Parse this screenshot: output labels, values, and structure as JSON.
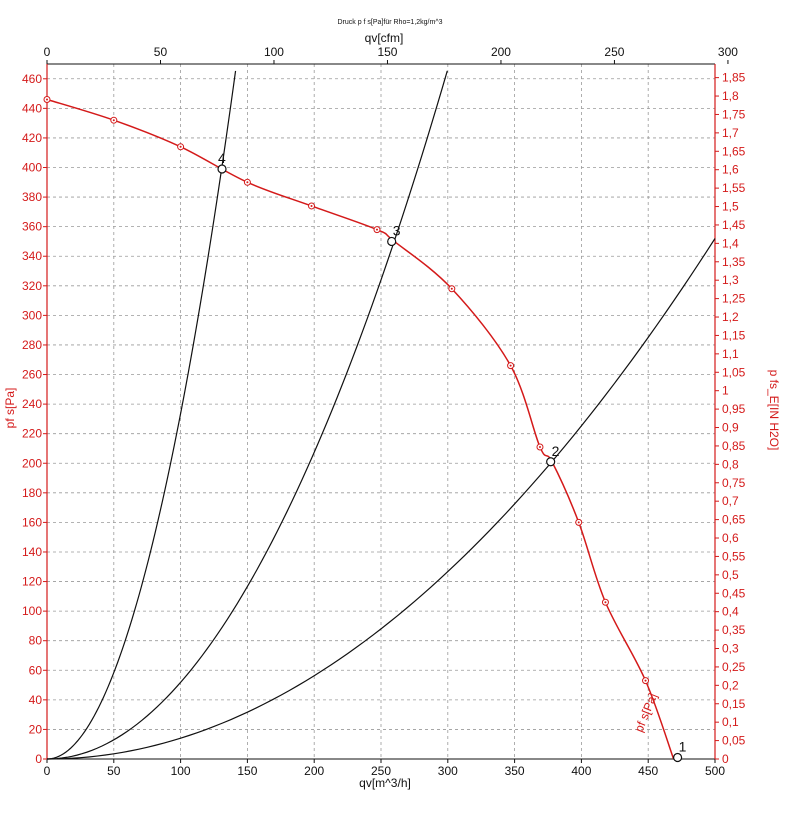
{
  "chart_data": {
    "type": "line",
    "title": "Druck p f s[Pa]für Rho=1,2kg/m^3",
    "xlabel": "qv[m^3/h]",
    "x2label": "qv[cfm]",
    "ylabel": "pf s[Pa]",
    "y2label": "p fs_E[IN H2O]",
    "xlim": [
      0,
      500
    ],
    "x2lim": [
      0,
      294.3
    ],
    "ylim": [
      0,
      470
    ],
    "y2lim": [
      0,
      1.887
    ],
    "x_ticks": [
      "0",
      "50",
      "100",
      "150",
      "200",
      "250",
      "300",
      "350",
      "400",
      "450",
      "500"
    ],
    "x2_ticks": [
      "0",
      "50",
      "100",
      "150",
      "200",
      "250",
      "300"
    ],
    "y_ticks": [
      "0",
      "20",
      "40",
      "60",
      "80",
      "100",
      "120",
      "140",
      "160",
      "180",
      "200",
      "220",
      "240",
      "260",
      "280",
      "300",
      "320",
      "340",
      "360",
      "380",
      "400",
      "420",
      "440",
      "460"
    ],
    "y2_ticks": [
      "0",
      "0,05",
      "0,1",
      "0,15",
      "0,2",
      "0,25",
      "0,3",
      "0,35",
      "0,4",
      "0,45",
      "0,5",
      "0,55",
      "0,6",
      "0,65",
      "0,7",
      "0,75",
      "0,8",
      "0,85",
      "0,9",
      "0,95",
      "1",
      "1,05",
      "1,1",
      "1,15",
      "1,2",
      "1,25",
      "1,3",
      "1,35",
      "1,4",
      "1,45",
      "1,5",
      "1,55",
      "1,6",
      "1,65",
      "1,7",
      "1,75",
      "1,8",
      "1,85"
    ],
    "grid": true,
    "fan_curve": {
      "name": "pf s[Pa]",
      "color": "#d41a1a",
      "x": [
        0,
        50,
        100,
        150,
        198,
        247,
        260,
        303,
        347,
        369,
        378,
        398,
        418,
        448,
        469
      ],
      "y": [
        446,
        432,
        414,
        390,
        374,
        358,
        350,
        318,
        266,
        211,
        201,
        160,
        106,
        53,
        0
      ],
      "marker_x": [
        0,
        50,
        100,
        150,
        198,
        247,
        303,
        347,
        369,
        398,
        418,
        448
      ],
      "marker_y": [
        446,
        432,
        414,
        390,
        374,
        358,
        318,
        266,
        211,
        160,
        106,
        53
      ]
    },
    "system_curves": [
      {
        "label": "1",
        "color": "#111111",
        "k": 1.0,
        "point_x": 472,
        "point_y": 1
      },
      {
        "label": "2",
        "color": "#111111",
        "k": 0.001408,
        "point_x": 377,
        "point_y": 201
      },
      {
        "label": "3",
        "color": "#111111",
        "k": 0.005184,
        "point_x": 258,
        "point_y": 350
      },
      {
        "label": "4",
        "color": "#111111",
        "k": 0.023361,
        "point_x": 131,
        "point_y": 399
      }
    ]
  }
}
